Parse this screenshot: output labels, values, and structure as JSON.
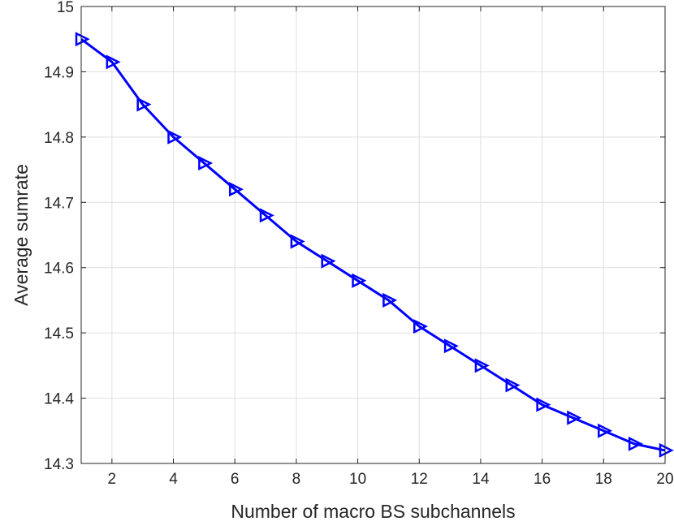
{
  "chart_data": {
    "type": "line",
    "xlabel": "Number of macro BS subchannels",
    "ylabel": "Average sumrate",
    "xlim": [
      1,
      20
    ],
    "ylim": [
      14.3,
      15
    ],
    "xticks": [
      2,
      4,
      6,
      8,
      10,
      12,
      14,
      16,
      18,
      20
    ],
    "yticks": [
      14.3,
      14.4,
      14.5,
      14.6,
      14.7,
      14.8,
      14.9,
      15
    ],
    "xtick_labels": [
      "2",
      "4",
      "6",
      "8",
      "10",
      "12",
      "14",
      "16",
      "18",
      "20"
    ],
    "ytick_labels": [
      "14.3",
      "14.4",
      "14.5",
      "14.6",
      "14.7",
      "14.8",
      "14.9",
      "15"
    ],
    "grid": true,
    "series": [
      {
        "color": "#0000ff",
        "marker": "triangle-right",
        "x": [
          1,
          2,
          3,
          4,
          5,
          6,
          7,
          8,
          9,
          10,
          11,
          12,
          13,
          14,
          15,
          16,
          17,
          18,
          19,
          20
        ],
        "y": [
          14.95,
          14.915,
          14.85,
          14.8,
          14.76,
          14.72,
          14.68,
          14.64,
          14.61,
          14.58,
          14.55,
          14.51,
          14.48,
          14.45,
          14.42,
          14.39,
          14.37,
          14.35,
          14.33,
          14.32
        ]
      }
    ]
  }
}
